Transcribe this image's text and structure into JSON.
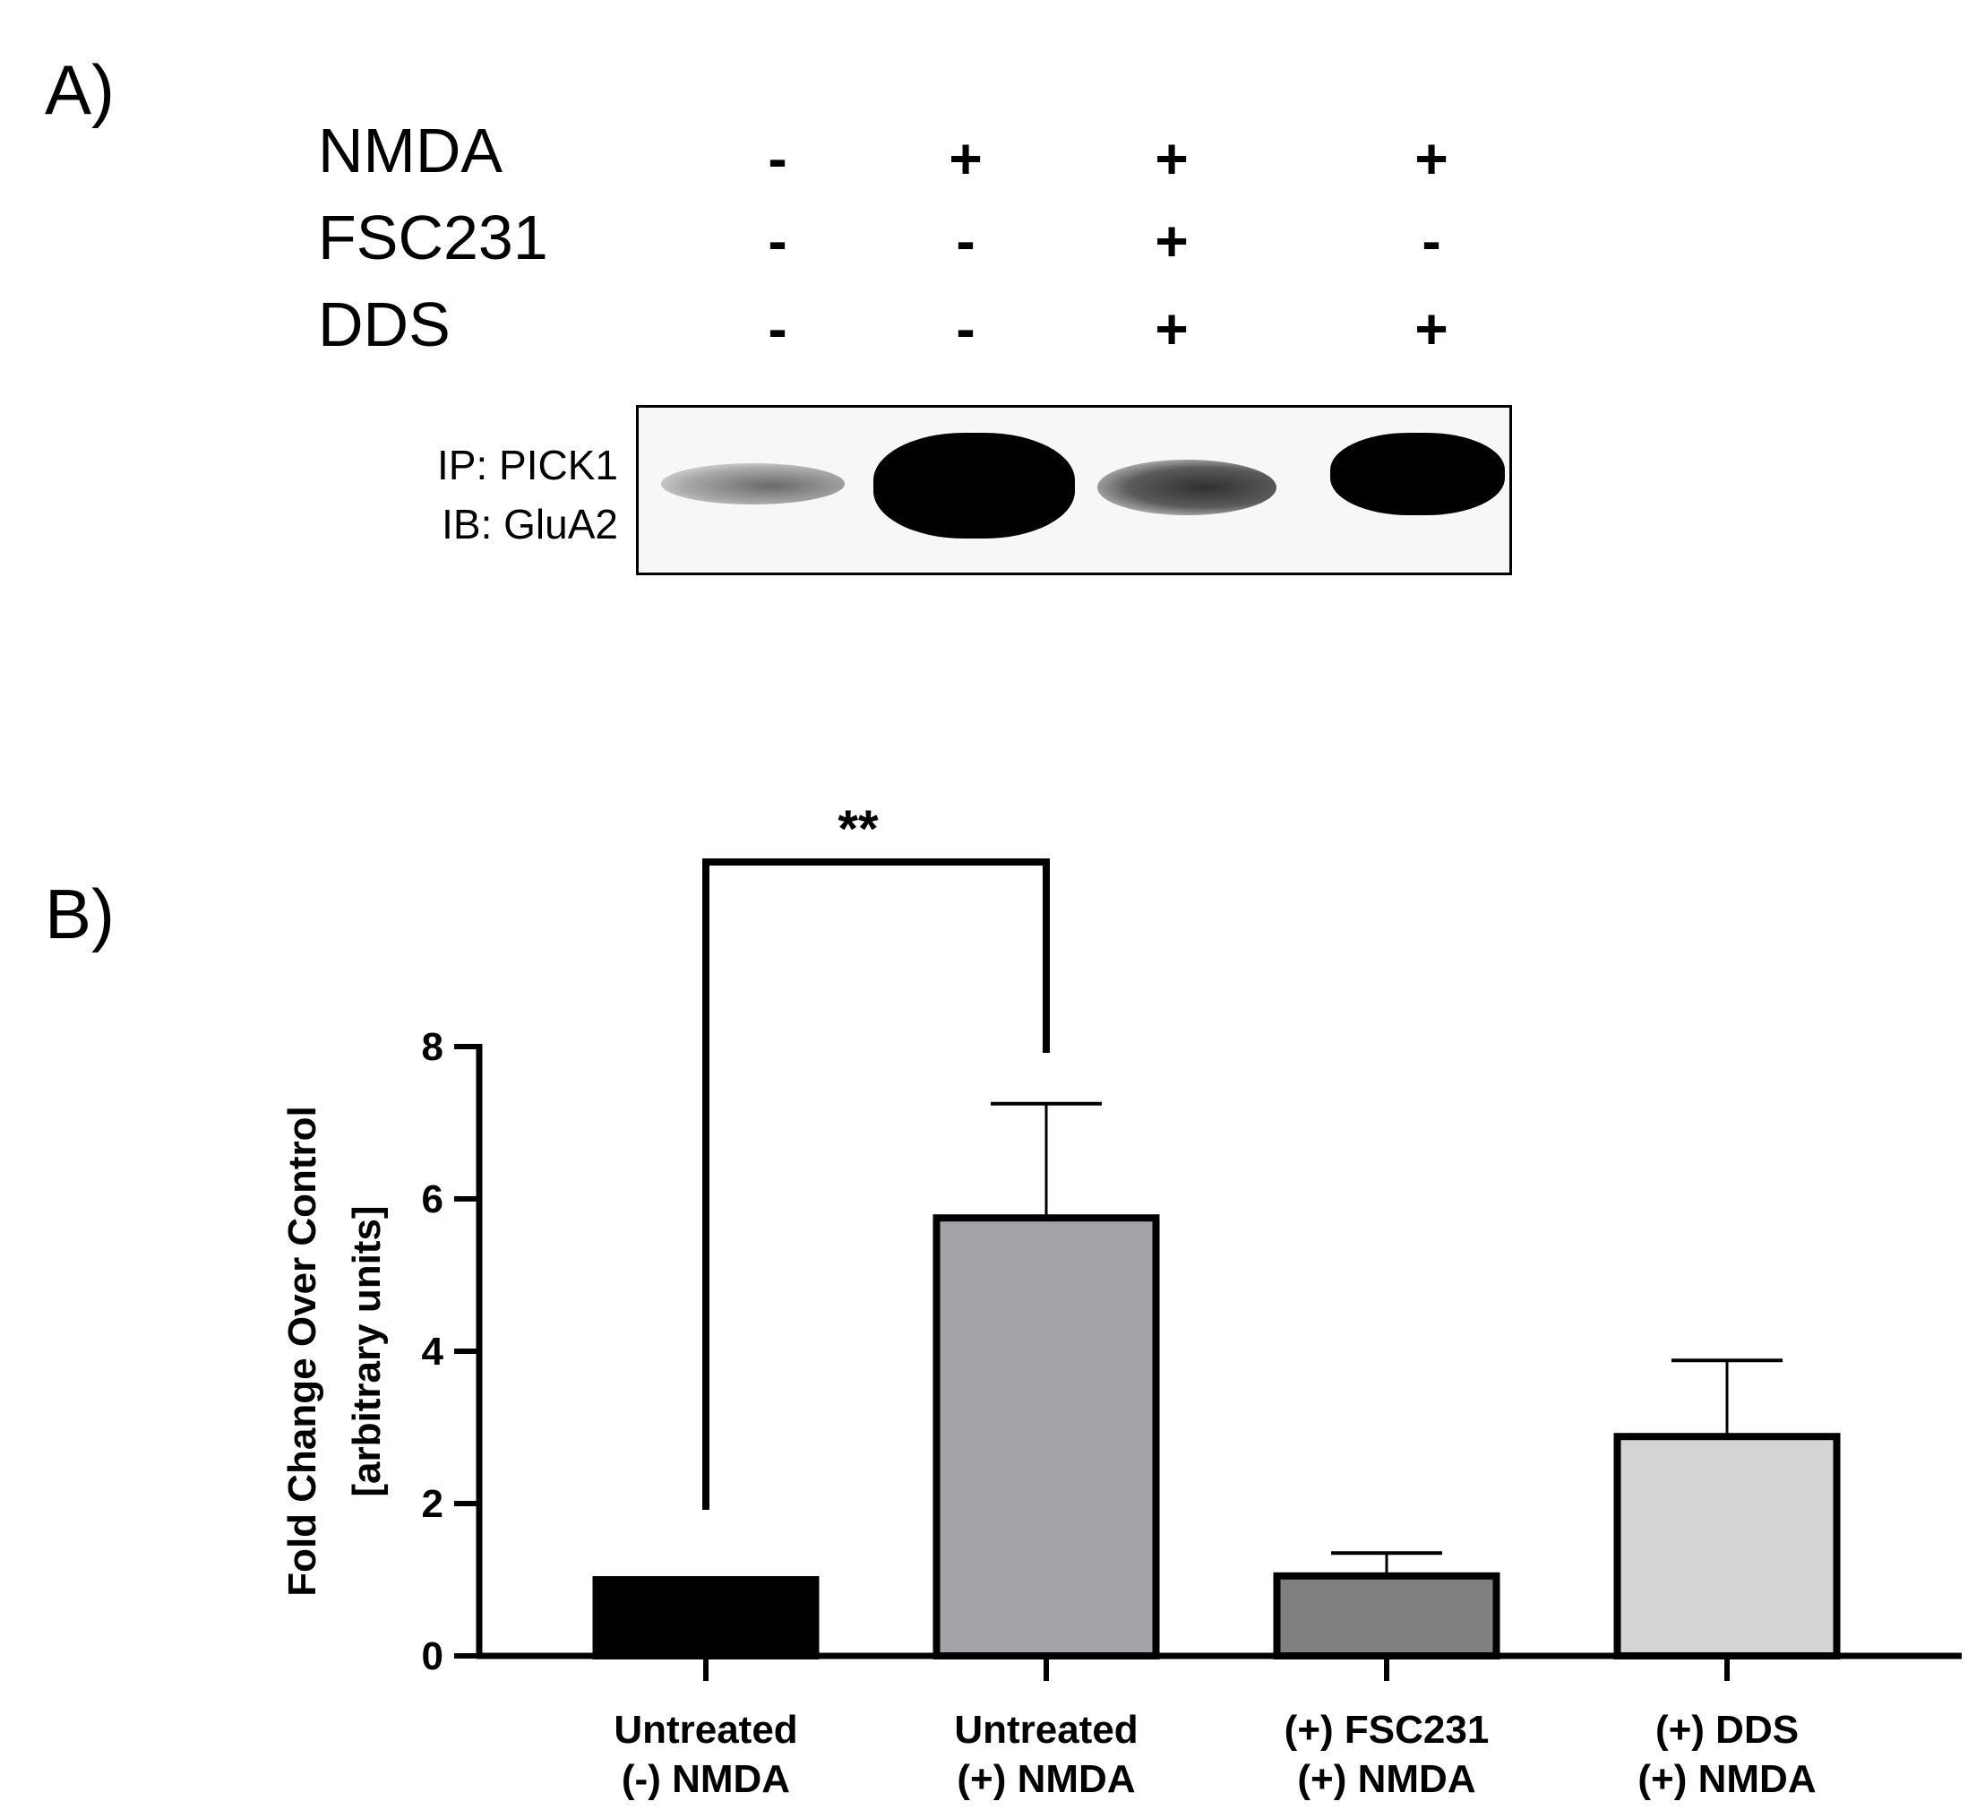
{
  "panel_a": {
    "label": "A)",
    "conditions": [
      {
        "name": "NMDA",
        "signs": [
          "-",
          "+",
          "+",
          "+"
        ]
      },
      {
        "name": "FSC231",
        "signs": [
          "-",
          "-",
          "+",
          "-"
        ]
      },
      {
        "name": "DDS",
        "signs": [
          "-",
          "-",
          "+",
          "+"
        ]
      }
    ],
    "blot_labels": [
      "IP: PICK1",
      "IB: GluA2"
    ],
    "band_intensity": [
      0.25,
      1.0,
      0.45,
      0.95
    ]
  },
  "panel_b": {
    "label": "B)",
    "significance": "**"
  },
  "chart_data": {
    "type": "bar",
    "categories": [
      [
        "Untreated",
        "(-) NMDA"
      ],
      [
        "Untreated",
        "(+) NMDA"
      ],
      [
        "(+) FSC231",
        "(+) NMDA"
      ],
      [
        "(+) DDS",
        "(+) NMDA"
      ]
    ],
    "values": [
      1.0,
      5.75,
      1.05,
      2.88
    ],
    "errors": [
      0.0,
      1.5,
      0.3,
      1.0
    ],
    "colors": [
      "#000000",
      "#a4a4a8",
      "#808080",
      "#d4d4d4"
    ],
    "ylabel": [
      "Fold Change Over Control",
      "[arbitrary units]"
    ],
    "ylim": [
      0,
      8
    ],
    "yticks": [
      0,
      2,
      4,
      6,
      8
    ],
    "comparison": {
      "from": 0,
      "to": 1,
      "label": "**"
    }
  }
}
